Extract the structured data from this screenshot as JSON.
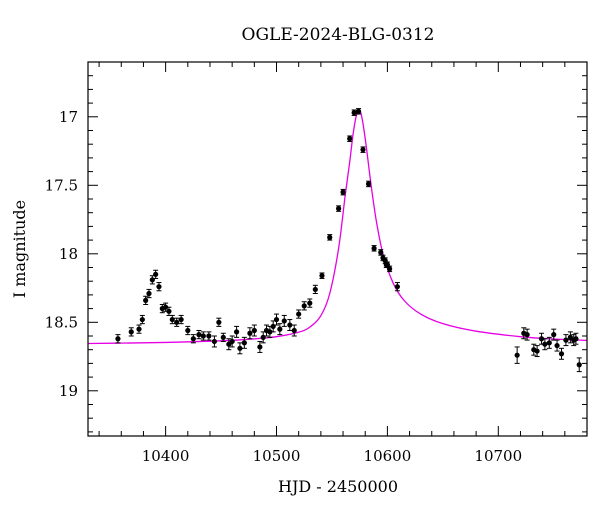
{
  "chart_data": {
    "type": "scatter",
    "title": "OGLE-2024-BLG-0312",
    "xlabel": "HJD - 2450000",
    "ylabel": "I magnitude",
    "xlim": [
      10330,
      10780
    ],
    "ylim": [
      19.33,
      16.6
    ],
    "y_inverted": true,
    "grid": false,
    "x_ticks": [
      10400,
      10500,
      10600,
      10700
    ],
    "x_tick_labels": [
      "10400",
      "10500",
      "10600",
      "10700"
    ],
    "y_ticks": [
      17,
      17.5,
      18,
      18.5,
      19
    ],
    "y_tick_labels": [
      "17",
      "17.5",
      "18",
      "18.5",
      "19"
    ],
    "colors": {
      "model": "#e600e6",
      "points": "#000000"
    },
    "model_curve": {
      "name": "",
      "x": [
        10330,
        10360,
        10400,
        10440,
        10470,
        10500,
        10520,
        10530,
        10540,
        10548,
        10556,
        10562,
        10566,
        10569,
        10572,
        10574,
        10576,
        10578,
        10581,
        10585,
        10590,
        10596,
        10605,
        10615,
        10630,
        10650,
        10680,
        10720,
        10750,
        10780
      ],
      "y": [
        18.655,
        18.652,
        18.647,
        18.638,
        18.627,
        18.605,
        18.572,
        18.535,
        18.452,
        18.29,
        17.96,
        17.57,
        17.33,
        17.13,
        16.99,
        16.95,
        16.97,
        17.05,
        17.22,
        17.48,
        17.76,
        18.0,
        18.21,
        18.34,
        18.44,
        18.51,
        18.565,
        18.605,
        18.622,
        18.632
      ]
    },
    "series": [
      {
        "name": "",
        "x": [
          10357,
          10369,
          10376,
          10379,
          10382,
          10385,
          10388,
          10391,
          10394,
          10397,
          10400,
          10403,
          10406,
          10410,
          10414,
          10420,
          10425,
          10430,
          10434,
          10439,
          10444,
          10448,
          10452,
          10457,
          10460,
          10464,
          10467,
          10471,
          10476,
          10480,
          10485,
          10488,
          10491,
          10494,
          10497,
          10500,
          10503,
          10507,
          10512,
          10516,
          10520,
          10525,
          10530,
          10535,
          10541,
          10548,
          10556,
          10560,
          10566,
          10570,
          10574,
          10578,
          10583,
          10588,
          10594,
          10596,
          10598,
          10599,
          10600,
          10602,
          10609,
          10717,
          10723,
          10726,
          10732,
          10735,
          10739,
          10742,
          10746,
          10750,
          10753,
          10757,
          10761,
          10765,
          10768,
          10770,
          10773
        ],
        "y": [
          18.62,
          18.57,
          18.55,
          18.48,
          18.34,
          18.29,
          18.19,
          18.15,
          18.24,
          18.4,
          18.39,
          18.42,
          18.48,
          18.5,
          18.48,
          18.56,
          18.62,
          18.59,
          18.6,
          18.6,
          18.64,
          18.5,
          18.61,
          18.66,
          18.64,
          18.57,
          18.69,
          18.65,
          18.58,
          18.56,
          18.68,
          18.61,
          18.56,
          18.57,
          18.53,
          18.48,
          18.55,
          18.49,
          18.52,
          18.56,
          18.44,
          18.38,
          18.36,
          18.26,
          18.16,
          17.88,
          17.67,
          17.55,
          17.16,
          16.97,
          16.96,
          17.24,
          17.49,
          17.96,
          17.99,
          18.03,
          18.05,
          18.08,
          18.08,
          18.11,
          18.24,
          18.74,
          18.58,
          18.59,
          18.7,
          18.71,
          18.62,
          18.66,
          18.65,
          18.59,
          18.67,
          18.73,
          18.63,
          18.61,
          18.63,
          18.62,
          18.81
        ],
        "err": [
          0.03,
          0.03,
          0.03,
          0.03,
          0.03,
          0.03,
          0.03,
          0.03,
          0.03,
          0.03,
          0.03,
          0.03,
          0.03,
          0.03,
          0.03,
          0.03,
          0.03,
          0.03,
          0.03,
          0.03,
          0.04,
          0.03,
          0.03,
          0.04,
          0.04,
          0.04,
          0.04,
          0.04,
          0.04,
          0.04,
          0.04,
          0.04,
          0.04,
          0.04,
          0.04,
          0.04,
          0.04,
          0.04,
          0.04,
          0.04,
          0.03,
          0.03,
          0.03,
          0.03,
          0.02,
          0.02,
          0.02,
          0.02,
          0.02,
          0.02,
          0.02,
          0.02,
          0.02,
          0.02,
          0.02,
          0.02,
          0.02,
          0.02,
          0.02,
          0.02,
          0.03,
          0.06,
          0.04,
          0.04,
          0.04,
          0.04,
          0.04,
          0.04,
          0.04,
          0.04,
          0.04,
          0.04,
          0.04,
          0.04,
          0.04,
          0.04,
          0.05
        ]
      }
    ]
  }
}
